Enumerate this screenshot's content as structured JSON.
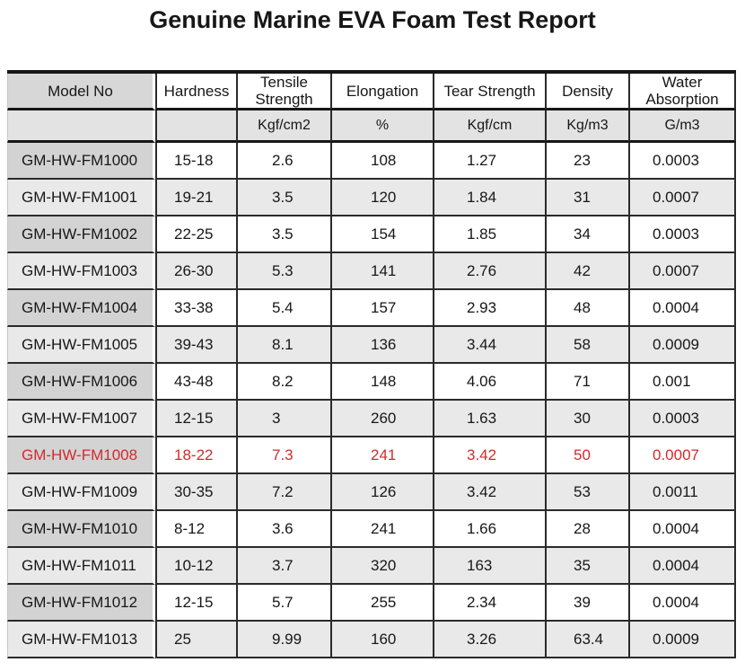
{
  "title": "Genuine Marine EVA Foam Test Report",
  "colors": {
    "text_dark": "#171717",
    "border_heavy": "#161616",
    "border_dark": "#2a2a2a",
    "header_model_gray": "#d7d7d7",
    "model_cell_gray": "#d3d3d3",
    "stripe_gray": "#e9e9e9",
    "units_gray": "#e3e3e3",
    "highlight_red": "#d22b2b"
  },
  "table": {
    "columns": [
      {
        "label": "Model No",
        "unit": ""
      },
      {
        "label": "Hardness",
        "unit": ""
      },
      {
        "label": "Tensile Strength",
        "unit": "Kgf/cm2"
      },
      {
        "label": "Elongation",
        "unit": "%"
      },
      {
        "label": "Tear Strength",
        "unit": "Kgf/cm"
      },
      {
        "label": "Density",
        "unit": "Kg/m3"
      },
      {
        "label": "Water Absorption",
        "unit": "G/m3"
      }
    ],
    "rows": [
      {
        "model": "GM-HW-FM1000",
        "values": [
          "15-18",
          "2.6",
          "108",
          "1.27",
          "23",
          "0.0003"
        ],
        "highlight": false
      },
      {
        "model": "GM-HW-FM1001",
        "values": [
          "19-21",
          "3.5",
          "120",
          "1.84",
          "31",
          "0.0007"
        ],
        "highlight": false
      },
      {
        "model": "GM-HW-FM1002",
        "values": [
          "22-25",
          "3.5",
          "154",
          "1.85",
          "34",
          "0.0003"
        ],
        "highlight": false
      },
      {
        "model": "GM-HW-FM1003",
        "values": [
          "26-30",
          "5.3",
          "141",
          "2.76",
          "42",
          "0.0007"
        ],
        "highlight": false
      },
      {
        "model": "GM-HW-FM1004",
        "values": [
          "33-38",
          "5.4",
          "157",
          "2.93",
          "48",
          "0.0004"
        ],
        "highlight": false
      },
      {
        "model": "GM-HW-FM1005",
        "values": [
          "39-43",
          "8.1",
          "136",
          "3.44",
          "58",
          "0.0009"
        ],
        "highlight": false
      },
      {
        "model": "GM-HW-FM1006",
        "values": [
          "43-48",
          "8.2",
          "148",
          "4.06",
          "71",
          "0.001"
        ],
        "highlight": false
      },
      {
        "model": "GM-HW-FM1007",
        "values": [
          "12-15",
          "3",
          "260",
          "1.63",
          "30",
          "0.0003"
        ],
        "highlight": false
      },
      {
        "model": "GM-HW-FM1008",
        "values": [
          "18-22",
          "7.3",
          "241",
          "3.42",
          "50",
          "0.0007"
        ],
        "highlight": true
      },
      {
        "model": "GM-HW-FM1009",
        "values": [
          "30-35",
          "7.2",
          "126",
          "3.42",
          "53",
          "0.0011"
        ],
        "highlight": false
      },
      {
        "model": "GM-HW-FM1010",
        "values": [
          "8-12",
          "3.6",
          "241",
          "1.66",
          "28",
          "0.0004"
        ],
        "highlight": false
      },
      {
        "model": "GM-HW-FM1011",
        "values": [
          "10-12",
          "3.7",
          "320",
          "163",
          "35",
          "0.0004"
        ],
        "highlight": false
      },
      {
        "model": "GM-HW-FM1012",
        "values": [
          "12-15",
          "5.7",
          "255",
          "2.34",
          "39",
          "0.0004"
        ],
        "highlight": false
      },
      {
        "model": "GM-HW-FM1013",
        "values": [
          "25",
          "9.99",
          "160",
          "3.26",
          "63.4",
          "0.0009"
        ],
        "highlight": false
      }
    ]
  }
}
